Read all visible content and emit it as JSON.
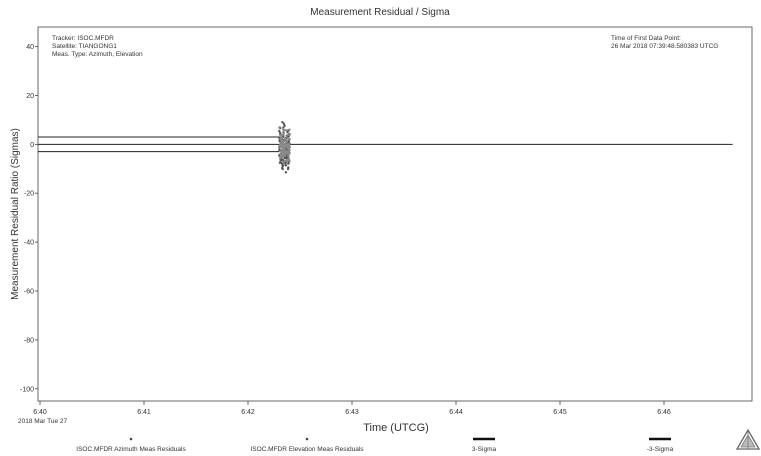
{
  "chart_data": {
    "type": "scatter",
    "title": "Measurement Residual / Sigma",
    "xlabel": "Time (UTCG)",
    "ylabel": "Measurement Residual Ratio (Sigmas)",
    "x_ticks": [
      "6:40",
      "6:41",
      "6:42",
      "6:43",
      "6:44",
      "6:45",
      "6:46"
    ],
    "x_origin_label": "2018 Mar Tue 27",
    "y_ticks": [
      40,
      20,
      0,
      -20,
      -40,
      -60,
      -80,
      -100
    ],
    "ylim": [
      -105,
      48
    ],
    "xlim_minutes": [
      0,
      6.66
    ],
    "grid": false,
    "info_left": [
      "Tracker: ISOC.MFDR",
      "Satellite: TIANGONG1",
      "Meas. Type: Azimuth, Elevation"
    ],
    "info_right": [
      "Time of First Data Point:",
      "26 Mar 2018 07:39:48.580383 UTCG"
    ],
    "reference_lines": [
      {
        "name": "3-Sigma",
        "y": 3,
        "x_end_minutes": 2.3,
        "color": "#222222"
      },
      {
        "name": "-3-Sigma",
        "y": -3,
        "x_end_minutes": 2.3,
        "color": "#222222"
      },
      {
        "name": "",
        "y": 0,
        "x_end_minutes": 6.66,
        "color": "#222222"
      }
    ],
    "series": [
      {
        "name": "ISOC.MFDR Azimuth Meas Residuals",
        "marker": "dot",
        "color": "#555555",
        "x_range_minutes": [
          2.3,
          2.4
        ],
        "y_range": [
          -14,
          11
        ]
      },
      {
        "name": "ISOC.MFDR Elevation Meas Residuals",
        "marker": "dot",
        "color": "#8a8a8a",
        "x_range_minutes": [
          2.3,
          2.4
        ],
        "y_range": [
          -10,
          8
        ]
      }
    ],
    "legend": {
      "placement": "bottom",
      "entries": [
        {
          "label": "ISOC.MFDR Azimuth Meas Residuals",
          "symbol": "dot"
        },
        {
          "label": "ISOC.MFDR Elevation Meas Residuals",
          "symbol": "dot"
        },
        {
          "label": "3-Sigma",
          "symbol": "line"
        },
        {
          "label": "-3-Sigma",
          "symbol": "line"
        }
      ]
    },
    "logo": "stk-logo-icon"
  }
}
